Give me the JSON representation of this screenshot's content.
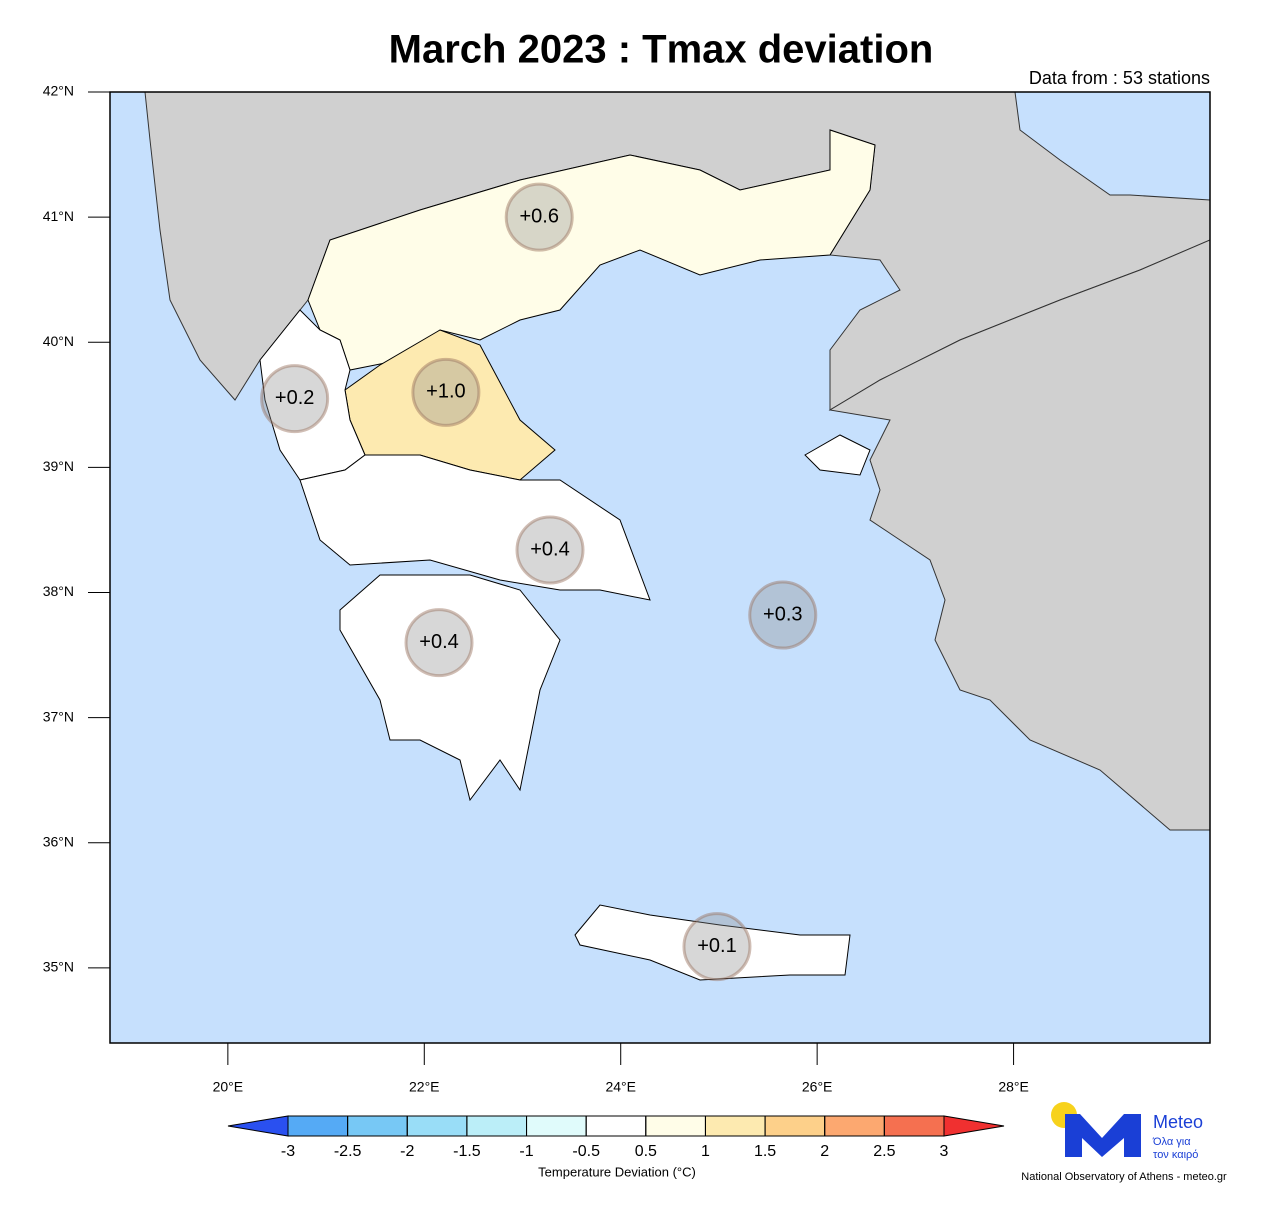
{
  "title": "March 2023 : Tmax deviation",
  "subtitle": "Data from : 53 stations",
  "map": {
    "lonlim": [
      18.8,
      30
    ],
    "latlim": [
      34.4,
      42
    ],
    "lat_ticks": [
      {
        "value": 42,
        "label": "42°N"
      },
      {
        "value": 41,
        "label": "41°N"
      },
      {
        "value": 40,
        "label": "40°N"
      },
      {
        "value": 39,
        "label": "39°N"
      },
      {
        "value": 38,
        "label": "38°N"
      },
      {
        "value": 37,
        "label": "37°N"
      },
      {
        "value": 36,
        "label": "36°N"
      },
      {
        "value": 35,
        "label": "35°N"
      }
    ],
    "lon_ticks": [
      {
        "value": 20,
        "label": "20°E"
      },
      {
        "value": 22,
        "label": "22°E"
      },
      {
        "value": 24,
        "label": "24°E"
      },
      {
        "value": 26,
        "label": "26°E"
      },
      {
        "value": 28,
        "label": "28°E"
      }
    ],
    "regions": [
      {
        "label": "+0.6",
        "value": 0.6,
        "lon": 23.17,
        "lat": 41.0
      },
      {
        "label": "+1.0",
        "value": 1.0,
        "lon": 22.22,
        "lat": 39.6
      },
      {
        "label": "+0.2",
        "value": 0.2,
        "lon": 20.68,
        "lat": 39.55
      },
      {
        "label": "+0.4",
        "value": 0.4,
        "lon": 23.28,
        "lat": 38.34
      },
      {
        "label": "+0.4",
        "value": 0.4,
        "lon": 22.15,
        "lat": 37.6
      },
      {
        "label": "+0.3",
        "value": 0.3,
        "lon": 25.65,
        "lat": 37.82
      },
      {
        "label": "+0.1",
        "value": 0.1,
        "lon": 24.98,
        "lat": 35.17
      }
    ]
  },
  "colorbar": {
    "label": "Temperature Deviation (°C)",
    "ticks": [
      -3,
      -2.5,
      -2,
      -1.5,
      -1,
      -0.5,
      0.5,
      1,
      1.5,
      2,
      2.5,
      3
    ],
    "colors": [
      "#2a50f0",
      "#55aaf5",
      "#77c8f5",
      "#99ddf7",
      "#bbeef8",
      "#e0fbfb",
      "#ffffff",
      "#fffde8",
      "#fdeab0",
      "#fdd08a",
      "#fca870",
      "#f57050",
      "#f03030"
    ]
  },
  "logo": {
    "name": "Meteo",
    "tagline_1": "Όλα για",
    "tagline_2": "τον καιρό",
    "credit": "National Observatory of Athens - meteo.gr"
  }
}
